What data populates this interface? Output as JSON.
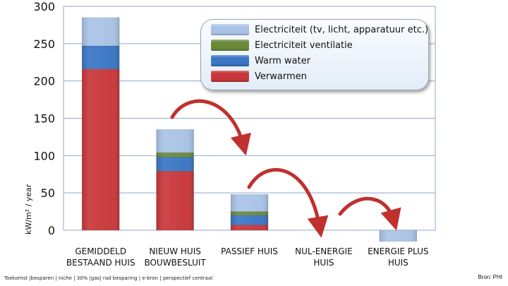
{
  "chart_data": {
    "type": "bar",
    "stacked": true,
    "title": "",
    "xlabel": "",
    "ylabel": "kW/m² / year",
    "ylim": [
      0,
      300
    ],
    "yticks": [
      "0",
      "50",
      "100",
      "150",
      "200",
      "250",
      "300"
    ],
    "grid": true,
    "legend_position": "top-right",
    "categories": [
      [
        "GEMIDDELD",
        "BESTAAND HUIS"
      ],
      [
        "NIEUW HUIS",
        "BOUWBESLUIT"
      ],
      [
        "PASSIEF HUIS"
      ],
      [
        "NUL-ENERGIE",
        "HUIS"
      ],
      [
        "ENERGIE PLUS",
        "HUIS"
      ]
    ],
    "series": [
      {
        "name": "Verwarmen",
        "color": "#c8373a",
        "values": [
          216,
          79,
          7,
          0,
          0
        ]
      },
      {
        "name": "Warm water",
        "color": "#3a76c4",
        "values": [
          31,
          19,
          13,
          0,
          0
        ]
      },
      {
        "name": "Electriciteit ventilatie",
        "color": "#6a8a3a",
        "values": [
          0,
          6,
          5,
          0,
          0
        ]
      },
      {
        "name": "Electriciteit (tv, licht, apparatuur etc.)",
        "color": "#a9c3e6",
        "values": [
          38,
          31,
          23,
          0,
          -15
        ]
      }
    ]
  },
  "legend_order": [
    3,
    2,
    1,
    0
  ],
  "footer": {
    "left": "Toekomst |besparen | niche | 30% |gas| rad besparing | e-bron | perspectief centraal",
    "right": "Bron: PHI"
  },
  "arrow_color": "#c0302e"
}
